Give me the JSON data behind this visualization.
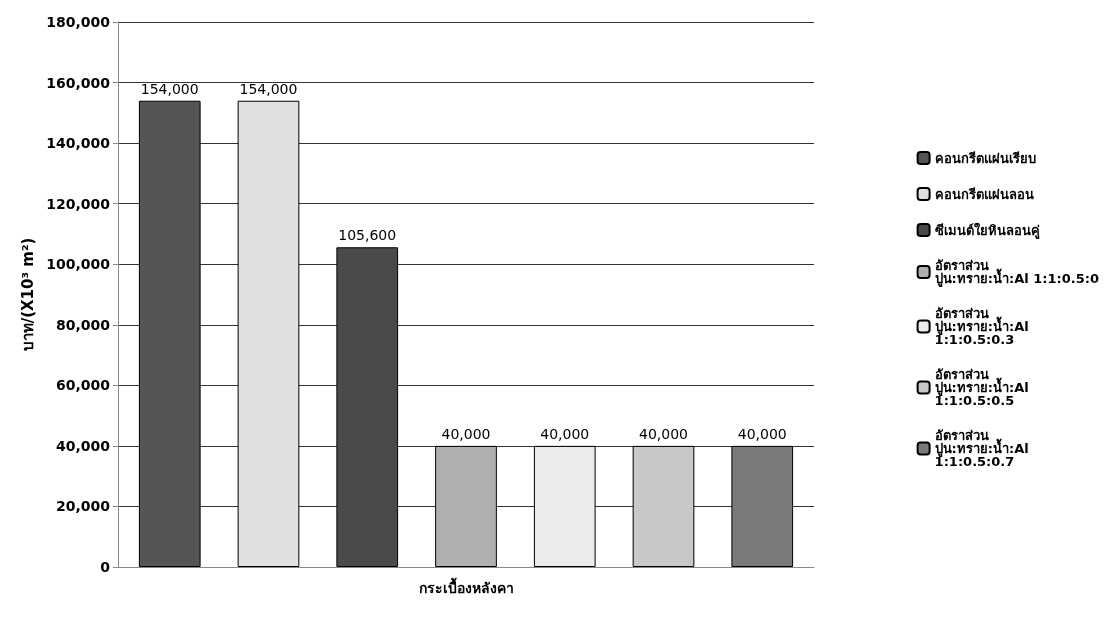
{
  "chart_data": {
    "type": "bar",
    "ylabel": "บาท/(X10³ m²)",
    "categories": [
      "กระเบื้องหลังคา"
    ],
    "series": [
      {
        "name": "คอนกรีตแผ่นเรียบ",
        "color": "#555555",
        "values": [
          154000
        ],
        "value_labels": [
          "154,000"
        ]
      },
      {
        "name": "คอนกรีตแผ่นลอน",
        "color": "#e0e0e0",
        "values": [
          154000
        ],
        "value_labels": [
          "154,000"
        ]
      },
      {
        "name": "ซีเมนต์ใยหินลอนคู่",
        "color": "#4a4a4a",
        "values": [
          105600
        ],
        "value_labels": [
          "105,600"
        ]
      },
      {
        "name": "อัตราส่วน ปูน:ทราย:น้ำ:Al 1:1:0.5:0",
        "color": "#b0b0b0",
        "values": [
          40000
        ],
        "value_labels": [
          "40,000"
        ]
      },
      {
        "name": "อัตราส่วน ปูน:ทราย:น้ำ:Al 1:1:0.5:0.3",
        "color": "#ebebeb",
        "values": [
          40000
        ],
        "value_labels": [
          "40,000"
        ]
      },
      {
        "name": "อัตราส่วน ปูน:ทราย:น้ำ:Al 1:1:0.5:0.5",
        "color": "#c8c8c8",
        "values": [
          40000
        ],
        "value_labels": [
          "40,000"
        ]
      },
      {
        "name": "อัตราส่วน ปูน:ทราย:น้ำ:Al 1:1:0.5:0.7",
        "color": "#7a7a7a",
        "values": [
          40000
        ],
        "value_labels": [
          "40,000"
        ]
      }
    ],
    "ylim": [
      0,
      180000
    ],
    "yticks": [
      0,
      {
        "value": 20000,
        "label": "20,000"
      },
      {
        "value": 40000,
        "label": "40,000"
      },
      {
        "value": 60000,
        "label": "60,000"
      },
      {
        "value": 80000,
        "label": "80,000"
      },
      {
        "value": 100000,
        "label": "100,000"
      },
      {
        "value": 120000,
        "label": "120,000"
      },
      {
        "value": 140000,
        "label": "140,000"
      },
      {
        "value": 160000,
        "label": "160,000"
      },
      {
        "value": 180000,
        "label": "180,000"
      }
    ],
    "grid": "y",
    "legend": "right"
  }
}
